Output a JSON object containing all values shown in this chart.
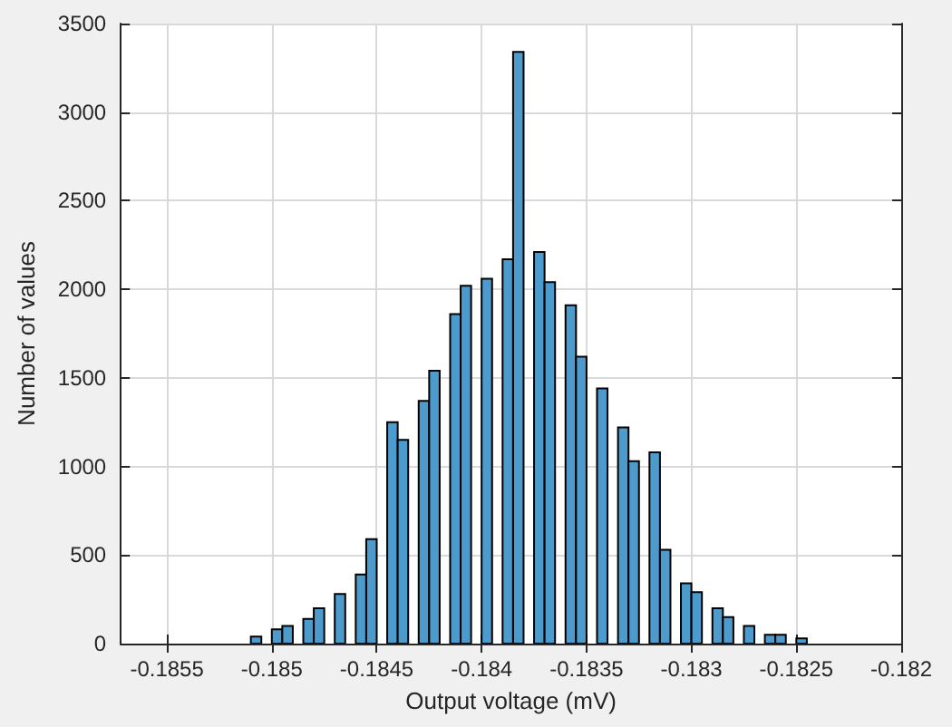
{
  "chart_data": {
    "type": "histogram",
    "xlabel": "Output voltage (mV)",
    "ylabel": "Number of values",
    "bins": [
      -0.1851,
      -0.18505,
      -0.185,
      -0.18495,
      -0.1849,
      -0.18485,
      -0.1848,
      -0.18475,
      -0.1847,
      -0.18465,
      -0.1846,
      -0.18455,
      -0.1845,
      -0.18445,
      -0.1844,
      -0.18435,
      -0.1843,
      -0.18425,
      -0.1842,
      -0.18415,
      -0.1841,
      -0.18405,
      -0.184,
      -0.18395,
      -0.1839,
      -0.18385,
      -0.1838,
      -0.18375,
      -0.1837,
      -0.18365,
      -0.1836,
      -0.18355,
      -0.1835,
      -0.18345,
      -0.1834,
      -0.18335,
      -0.1833,
      -0.18325,
      -0.1832,
      -0.18315,
      -0.1831,
      -0.18305,
      -0.183,
      -0.18295,
      -0.1829,
      -0.18285,
      -0.1828,
      -0.18275,
      -0.1827,
      -0.18265,
      -0.1826,
      -0.18255,
      -0.1825,
      -0.18245
    ],
    "values": [
      40,
      0,
      80,
      100,
      0,
      140,
      200,
      0,
      280,
      0,
      390,
      590,
      0,
      1250,
      1150,
      0,
      1370,
      1540,
      0,
      1860,
      2020,
      0,
      2060,
      0,
      2170,
      3340,
      0,
      2210,
      2040,
      0,
      1910,
      1620,
      0,
      1440,
      0,
      1220,
      1030,
      0,
      1080,
      530,
      0,
      340,
      290,
      0,
      200,
      150,
      0,
      100,
      0,
      50,
      50,
      0,
      30
    ],
    "color": "#4d9bcd",
    "xlim": [
      -0.18572,
      -0.182
    ],
    "xticks": [
      -0.1855,
      -0.185,
      -0.1845,
      -0.184,
      -0.1835,
      -0.183,
      -0.1825,
      -0.182
    ],
    "ylim": [
      0,
      3500
    ],
    "yticks": [
      0,
      500,
      1000,
      1500,
      2000,
      2500,
      3000,
      3500
    ],
    "grid": true
  }
}
